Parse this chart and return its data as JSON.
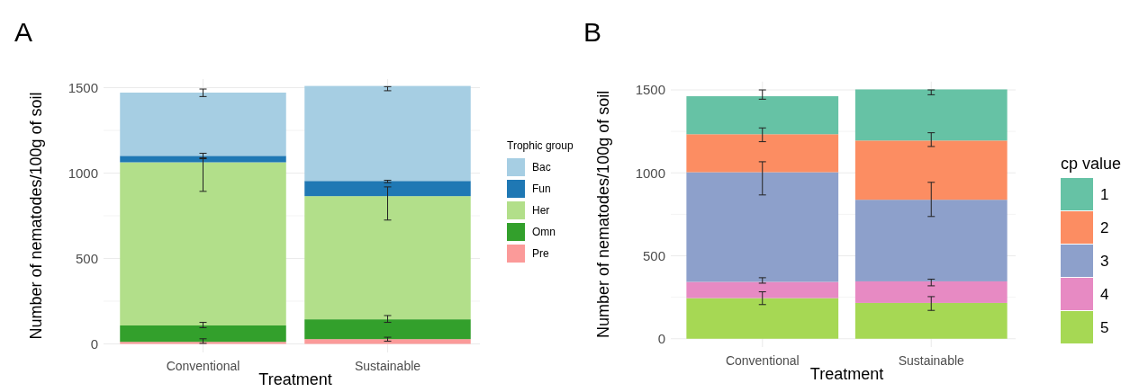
{
  "chart_data": [
    {
      "type": "bar",
      "title": "A",
      "xlabel": "Treatment",
      "ylabel": "Number of nematodes/100g of soil",
      "legend_title": "Trophic group",
      "categories": [
        "Conventional",
        "Sustainable"
      ],
      "stacked": true,
      "grid": true,
      "legend": "right",
      "ylim": [
        -50,
        1550
      ],
      "yticks": [
        0,
        {
          "value": 250,
          "label": null
        },
        500,
        {
          "value": 750,
          "label": null
        },
        1000,
        {
          "value": 1250,
          "label": null
        },
        1500
      ],
      "series": [
        {
          "name": "Pre",
          "color": "#fb9a99",
          "values": [
            12,
            28
          ],
          "errors": [
            [
              3,
              30
            ],
            [
              16,
              39
            ]
          ]
        },
        {
          "name": "Omn",
          "color": "#33a02c",
          "values": [
            96,
            116
          ],
          "errors": [
            [
              95,
              126
            ],
            [
              126,
              166
            ]
          ]
        },
        {
          "name": "Her",
          "color": "#b2df8a",
          "values": [
            955,
            721
          ],
          "errors": [
            [
              893,
              1084
            ],
            [
              725,
              919
            ]
          ]
        },
        {
          "name": "Fun",
          "color": "#1f78b4",
          "values": [
            38,
            89
          ],
          "errors": [
            [
              1089,
              1116
            ],
            [
              944,
              958
            ]
          ]
        },
        {
          "name": "Bac",
          "color": "#a6cee3",
          "values": [
            370,
            556
          ],
          "errors": [
            [
              1448,
              1492
            ],
            [
              1482,
              1506
            ]
          ]
        }
      ]
    },
    {
      "type": "bar",
      "title": "B",
      "xlabel": "Treatment",
      "ylabel": "Number of nematodes/100g of soil",
      "legend_title": "cp value",
      "categories": [
        "Conventional",
        "Sustainable"
      ],
      "stacked": true,
      "grid": true,
      "legend": "right",
      "ylim": [
        -50,
        1550
      ],
      "yticks": [
        0,
        {
          "value": 250,
          "label": null
        },
        500,
        {
          "value": 750,
          "label": null
        },
        1000,
        {
          "value": 1250,
          "label": null
        },
        1500
      ],
      "series": [
        {
          "name": "5",
          "color": "#a6d854",
          "values": [
            245,
            216
          ],
          "errors": [
            [
              206,
              283
            ],
            [
              171,
              254
            ]
          ]
        },
        {
          "name": "4",
          "color": "#e78ac3",
          "values": [
            98,
            130
          ],
          "errors": [
            [
              335,
              368
            ],
            [
              319,
              359
            ]
          ]
        },
        {
          "name": "3",
          "color": "#8da0cb",
          "values": [
            661,
            492
          ],
          "errors": [
            [
              867,
              1067
            ],
            [
              737,
              943
            ]
          ]
        },
        {
          "name": "2",
          "color": "#fc8d62",
          "values": [
            229,
            357
          ],
          "errors": [
            [
              1188,
              1271
            ],
            [
              1159,
              1242
            ]
          ]
        },
        {
          "name": "1",
          "color": "#66c2a5",
          "values": [
            229,
            308
          ],
          "errors": [
            [
              1444,
              1500
            ],
            [
              1471,
              1500
            ]
          ]
        }
      ]
    }
  ]
}
